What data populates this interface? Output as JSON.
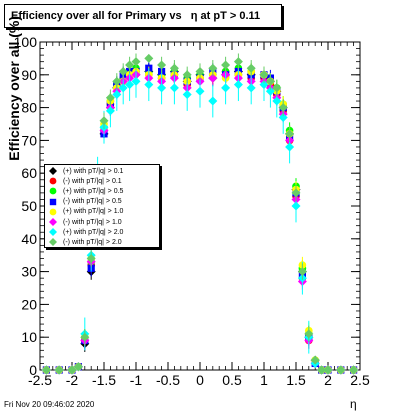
{
  "chart_data": {
    "type": "scatter",
    "title": "Efficiency over all for Primary vs   η at pT > 0.11",
    "xlabel": "η",
    "ylabel": "Efficiency over all (%)",
    "xlim": [
      -2.5,
      2.5
    ],
    "ylim": [
      0,
      100
    ],
    "x_ticks": [
      -2.5,
      -2,
      -1.5,
      -1,
      -0.5,
      0,
      0.5,
      1,
      1.5,
      2,
      2.5
    ],
    "y_ticks": [
      0,
      10,
      20,
      30,
      40,
      50,
      60,
      70,
      80,
      90,
      100
    ],
    "grid": false,
    "legend_position": "center-left",
    "series": [
      {
        "name": "(+) with pT/|q| > 0.1",
        "color": "#000000",
        "marker": "diamond",
        "x": [
          -2.4,
          -2.2,
          -2.0,
          -1.9,
          -1.8,
          -1.7,
          -1.6,
          -1.5,
          -1.4,
          -1.3,
          -1.2,
          -1.1,
          -1.0,
          -0.8,
          -0.6,
          -0.4,
          -0.2,
          0.0,
          0.2,
          0.4,
          0.6,
          0.8,
          1.0,
          1.1,
          1.2,
          1.3,
          1.4,
          1.5,
          1.6,
          1.7,
          1.8,
          1.9,
          2.0,
          2.2,
          2.4
        ],
        "y": [
          0,
          0,
          0,
          1,
          8,
          30,
          55,
          72,
          80,
          86,
          88,
          90,
          90,
          91,
          90,
          91,
          88,
          90,
          89,
          90,
          91,
          90,
          90,
          88,
          85,
          80,
          72,
          55,
          30,
          10,
          3,
          0,
          0,
          0,
          0
        ]
      },
      {
        "name": "(-) with pT/|q| > 0.1",
        "color": "#ff0000",
        "marker": "circle",
        "x": [
          -2.4,
          -2.2,
          -2.0,
          -1.9,
          -1.8,
          -1.7,
          -1.6,
          -1.5,
          -1.4,
          -1.3,
          -1.2,
          -1.1,
          -1.0,
          -0.8,
          -0.6,
          -0.4,
          -0.2,
          0.0,
          0.2,
          0.4,
          0.6,
          0.8,
          1.0,
          1.1,
          1.2,
          1.3,
          1.4,
          1.5,
          1.6,
          1.7,
          1.8,
          1.9,
          2.0,
          2.2,
          2.4
        ],
        "y": [
          0,
          0,
          0,
          1,
          9,
          32,
          57,
          73,
          81,
          86,
          89,
          90,
          91,
          90,
          89,
          90,
          87,
          89,
          90,
          91,
          90,
          89,
          89,
          87,
          84,
          79,
          70,
          53,
          28,
          9,
          2,
          0,
          0,
          0,
          0
        ]
      },
      {
        "name": "(+) with pT/|q| > 0.5",
        "color": "#00ff00",
        "marker": "circle",
        "x": [
          -2.4,
          -2.2,
          -2.0,
          -1.9,
          -1.8,
          -1.7,
          -1.6,
          -1.5,
          -1.4,
          -1.3,
          -1.2,
          -1.1,
          -1.0,
          -0.8,
          -0.6,
          -0.4,
          -0.2,
          0.0,
          0.2,
          0.4,
          0.6,
          0.8,
          1.0,
          1.1,
          1.2,
          1.3,
          1.4,
          1.5,
          1.6,
          1.7,
          1.8,
          1.9,
          2.0,
          2.2,
          2.4
        ],
        "y": [
          0,
          0,
          0,
          1,
          10,
          33,
          58,
          74,
          82,
          87,
          89,
          91,
          92,
          91,
          90,
          91,
          89,
          90,
          90,
          91,
          92,
          91,
          90,
          88,
          86,
          81,
          73,
          56,
          31,
          11,
          3,
          0,
          0,
          0,
          0
        ]
      },
      {
        "name": "(-) with pT/|q| > 0.5",
        "color": "#0000ff",
        "marker": "square",
        "x": [
          -2.4,
          -2.2,
          -2.0,
          -1.9,
          -1.8,
          -1.7,
          -1.6,
          -1.5,
          -1.4,
          -1.3,
          -1.2,
          -1.1,
          -1.0,
          -0.8,
          -0.6,
          -0.4,
          -0.2,
          0.0,
          0.2,
          0.4,
          0.6,
          0.8,
          1.0,
          1.1,
          1.2,
          1.3,
          1.4,
          1.5,
          1.6,
          1.7,
          1.8,
          1.9,
          2.0,
          2.2,
          2.4
        ],
        "y": [
          0,
          0,
          0,
          1,
          9,
          31,
          56,
          72,
          81,
          87,
          90,
          91,
          91,
          92,
          91,
          90,
          88,
          89,
          91,
          90,
          91,
          90,
          90,
          89,
          85,
          80,
          71,
          54,
          29,
          10,
          2,
          0,
          0,
          0,
          0
        ]
      },
      {
        "name": "(+) with pT/|q| > 1.0",
        "color": "#ffff00",
        "marker": "circle",
        "x": [
          -2.4,
          -2.2,
          -2.0,
          -1.9,
          -1.8,
          -1.7,
          -1.6,
          -1.5,
          -1.4,
          -1.3,
          -1.2,
          -1.1,
          -1.0,
          -0.8,
          -0.6,
          -0.4,
          -0.2,
          0.0,
          0.2,
          0.4,
          0.6,
          0.8,
          1.0,
          1.1,
          1.2,
          1.3,
          1.4,
          1.5,
          1.6,
          1.7,
          1.8,
          1.9,
          2.0,
          2.2,
          2.4
        ],
        "y": [
          0,
          0,
          0,
          1,
          10,
          34,
          59,
          75,
          82,
          86,
          88,
          90,
          91,
          90,
          89,
          90,
          88,
          89,
          90,
          89,
          90,
          91,
          90,
          88,
          85,
          81,
          72,
          55,
          32,
          12,
          3,
          0,
          0,
          0,
          0
        ]
      },
      {
        "name": "(-) with pT/|q| > 1.0",
        "color": "#ff00ff",
        "marker": "diamond",
        "x": [
          -2.4,
          -2.2,
          -2.0,
          -1.9,
          -1.8,
          -1.7,
          -1.6,
          -1.5,
          -1.4,
          -1.3,
          -1.2,
          -1.1,
          -1.0,
          -0.8,
          -0.6,
          -0.4,
          -0.2,
          0.0,
          0.2,
          0.4,
          0.6,
          0.8,
          1.0,
          1.1,
          1.2,
          1.3,
          1.4,
          1.5,
          1.6,
          1.7,
          1.8,
          1.9,
          2.0,
          2.2,
          2.4
        ],
        "y": [
          0,
          0,
          0,
          1,
          9,
          33,
          58,
          73,
          80,
          85,
          88,
          89,
          90,
          89,
          88,
          89,
          86,
          88,
          89,
          90,
          89,
          88,
          88,
          86,
          83,
          78,
          70,
          52,
          27,
          9,
          2,
          0,
          0,
          0,
          0
        ]
      },
      {
        "name": "(+) with pT/|q| > 2.0",
        "color": "#00ffff",
        "marker": "diamond",
        "x": [
          -2.4,
          -2.2,
          -2.0,
          -1.9,
          -1.8,
          -1.7,
          -1.6,
          -1.5,
          -1.4,
          -1.3,
          -1.2,
          -1.1,
          -1.0,
          -0.8,
          -0.6,
          -0.4,
          -0.2,
          0.0,
          0.2,
          0.4,
          0.6,
          0.8,
          1.0,
          1.1,
          1.2,
          1.3,
          1.4,
          1.5,
          1.6,
          1.7,
          1.8,
          1.9,
          2.0,
          2.2,
          2.4
        ],
        "y": [
          0,
          0,
          0,
          1,
          11,
          35,
          60,
          74,
          79,
          84,
          86,
          87,
          88,
          87,
          86,
          86,
          84,
          85,
          82,
          86,
          87,
          86,
          87,
          85,
          82,
          77,
          68,
          50,
          28,
          10,
          2,
          0,
          0,
          0,
          0
        ]
      },
      {
        "name": "(-) with pT/|q| > 2.0",
        "color": "#66cc66",
        "marker": "diamond",
        "x": [
          -2.4,
          -2.2,
          -2.0,
          -1.9,
          -1.8,
          -1.7,
          -1.6,
          -1.5,
          -1.4,
          -1.3,
          -1.2,
          -1.1,
          -1.0,
          -0.8,
          -0.6,
          -0.4,
          -0.2,
          0.0,
          0.2,
          0.4,
          0.6,
          0.8,
          1.0,
          1.1,
          1.2,
          1.3,
          1.4,
          1.5,
          1.6,
          1.7,
          1.8,
          1.9,
          2.0,
          2.2,
          2.4
        ],
        "y": [
          0,
          0,
          0,
          1,
          10,
          34,
          59,
          76,
          83,
          88,
          91,
          93,
          94,
          95,
          93,
          92,
          90,
          91,
          92,
          93,
          94,
          92,
          90,
          88,
          86,
          80,
          72,
          54,
          30,
          11,
          3,
          0,
          0,
          0,
          0
        ]
      }
    ]
  },
  "footer": {
    "timestamp": "Fri Nov 20 09:46:02 2020"
  }
}
